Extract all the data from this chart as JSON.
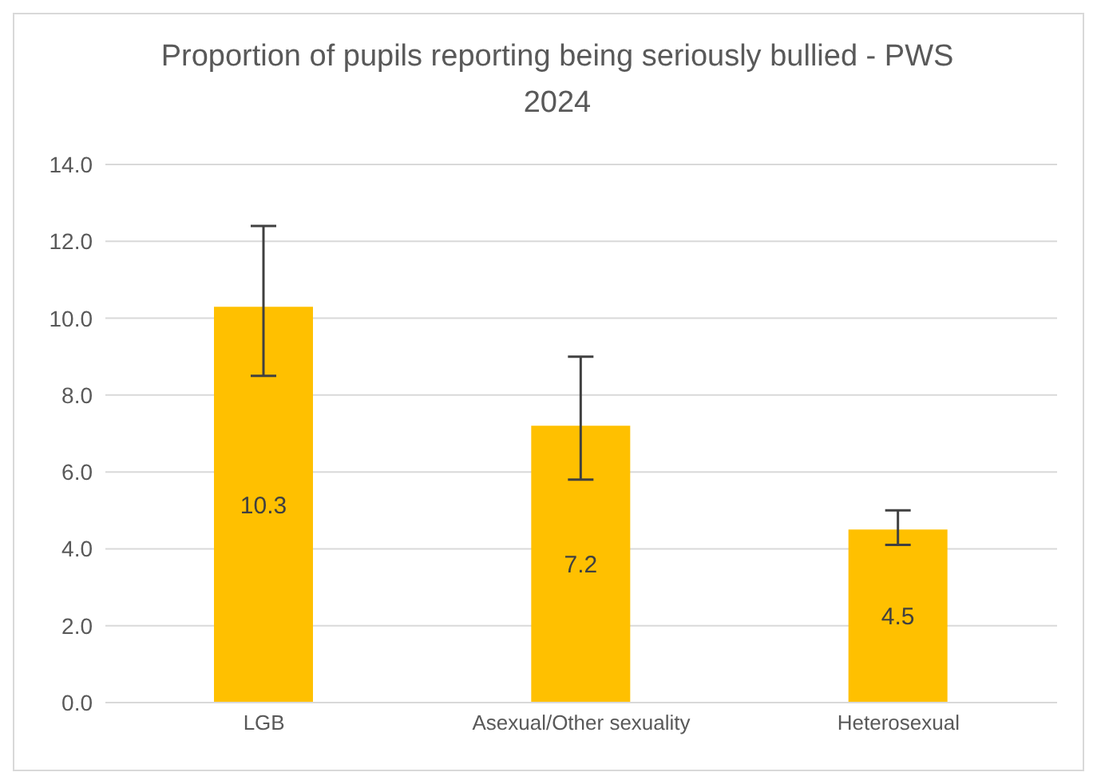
{
  "chart_data": {
    "type": "bar",
    "title": "Proportion of pupils reporting being seriously bullied - PWS 2024",
    "categories": [
      "LGB",
      "Asexual/Other sexuality",
      "Heterosexual"
    ],
    "values": [
      10.3,
      7.2,
      4.5
    ],
    "errors": [
      [
        8.5,
        12.4
      ],
      [
        5.8,
        9.0
      ],
      [
        4.1,
        5.0
      ]
    ],
    "color": "#ffc000",
    "ylim": [
      0,
      14
    ],
    "yticks": [
      {
        "value": 0,
        "label": "0.0"
      },
      {
        "value": 2,
        "label": "2.0"
      },
      {
        "value": 4,
        "label": "4.0"
      },
      {
        "value": 6,
        "label": "6.0"
      },
      {
        "value": 8,
        "label": "8.0"
      },
      {
        "value": 10,
        "label": "10.0"
      },
      {
        "value": 12,
        "label": "12.0"
      },
      {
        "value": 14,
        "label": "14.0"
      }
    ],
    "grid": "y",
    "data_labels": true,
    "legend": false
  }
}
